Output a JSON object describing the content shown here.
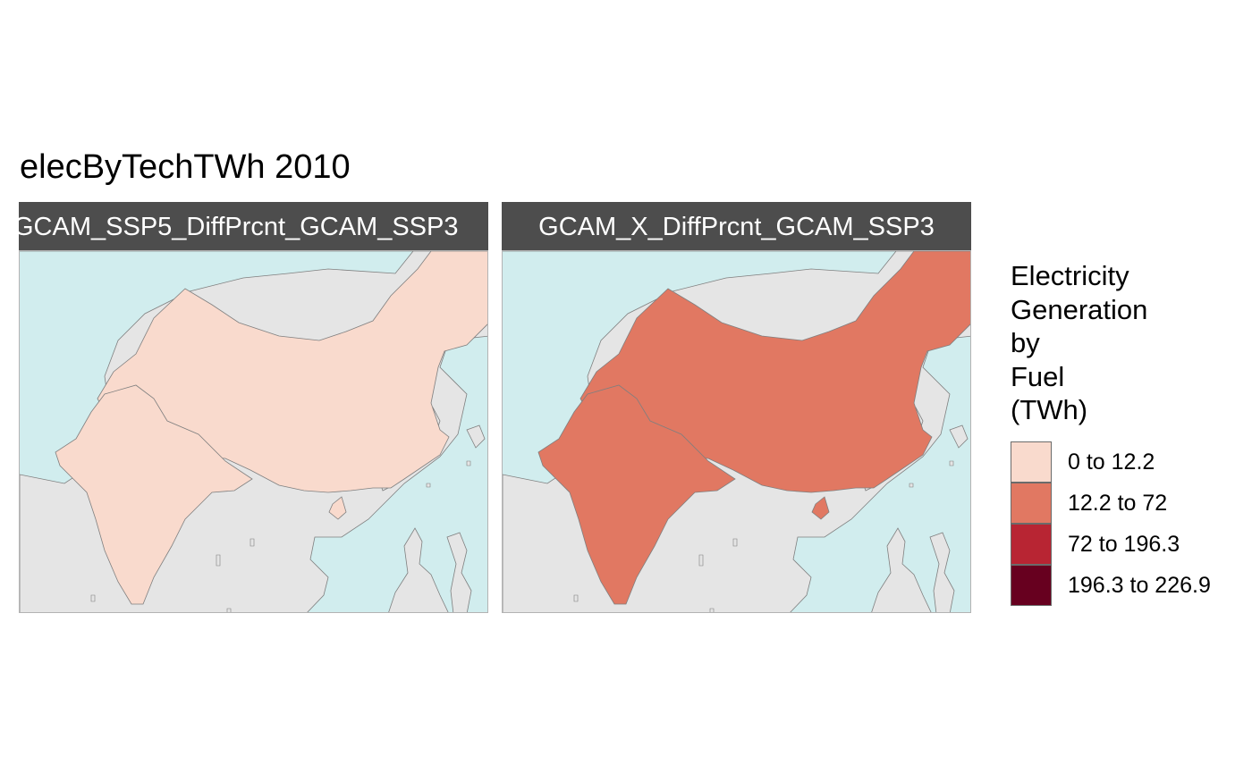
{
  "title": "elecByTechTWh 2010",
  "colors": {
    "ocean": "#d1edee",
    "land": "#e5e5e5",
    "border": "#7f7f7f",
    "strip": "#4d4d4d"
  },
  "panels": [
    {
      "label": "GCAM_SSP5_DiffPrcnt_GCAM_SSP3",
      "region_class": "0 to 12.2",
      "fill": "#f9dacd"
    },
    {
      "label": "GCAM_X_DiffPrcnt_GCAM_SSP3",
      "region_class": "12.2 to 72",
      "fill": "#e17862"
    }
  ],
  "legend": {
    "title_lines": [
      "Electricity",
      "Generation",
      "by",
      "Fuel",
      "(TWh)"
    ],
    "items": [
      {
        "label": "0 to 12.2",
        "color": "#f9dacd"
      },
      {
        "label": "12.2 to 72",
        "color": "#e17862"
      },
      {
        "label": "72 to 196.3",
        "color": "#b82533"
      },
      {
        "label": "196.3 to 226.9",
        "color": "#67001f"
      }
    ]
  }
}
